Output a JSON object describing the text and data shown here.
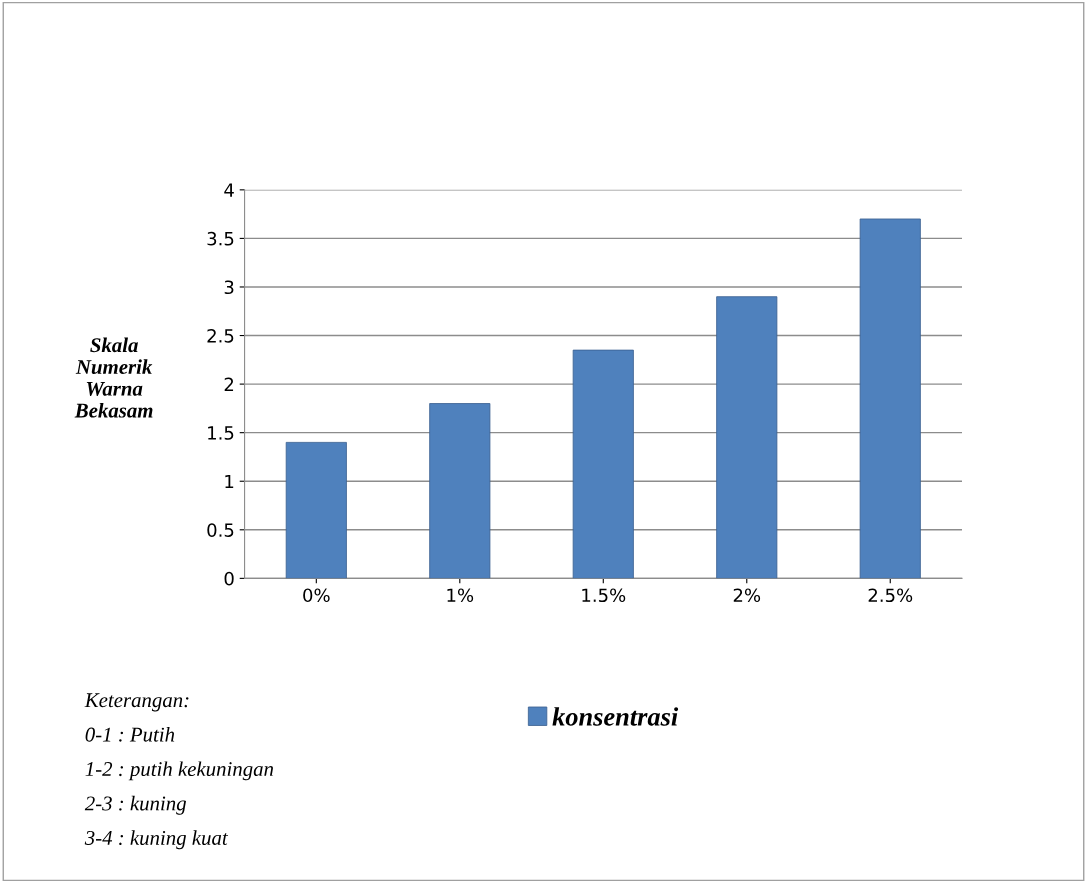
{
  "chart_data": {
    "type": "bar",
    "ylabel": "Skala\nNumerik\nWarna\nBekasam",
    "categories": [
      "0%",
      "1%",
      "1.5%",
      "2%",
      "2.5%"
    ],
    "series": [
      {
        "name": "konsentrasi",
        "color": "#4f81bd",
        "values": [
          1.4,
          1.8,
          2.35,
          2.9,
          3.7
        ]
      }
    ],
    "ylim": [
      0,
      4
    ],
    "yticks": [
      0,
      0.5,
      1,
      1.5,
      2,
      2.5,
      3,
      3.5,
      4
    ],
    "grid": "y",
    "legend": "bottom",
    "annotations": [
      "Keterangan:",
      "0-1 : Putih",
      "1-2 : putih kekuningan",
      "2-3 : kuning",
      "3-4 : kuning kuat"
    ]
  }
}
